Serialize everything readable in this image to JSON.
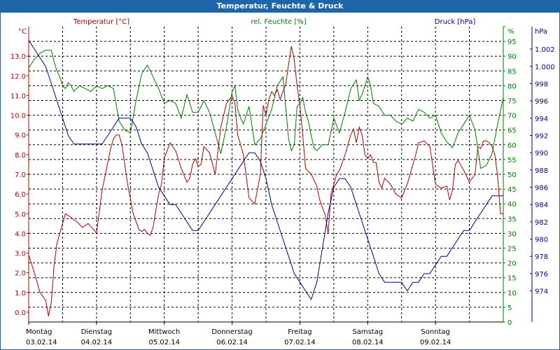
{
  "title": "Temperatur, Feuchte & Druck",
  "chart_data": {
    "type": "line",
    "title": "Temperatur, Feuchte & Druck",
    "colors": {
      "temperature": "#b00000",
      "humidity": "#007a00",
      "pressure": "#00008b",
      "grid": "#000000",
      "title_bg": "#1d64a8"
    },
    "legend": {
      "temperature": "Temperatur [°C]",
      "humidity": "rel. Feuchte [%]",
      "pressure": "Druck [hPa]"
    },
    "axes": {
      "left": {
        "unit": "°C",
        "min": -0.5,
        "max": 14.5,
        "ticks": [
          "0.0",
          "1.0",
          "2.0",
          "3.0",
          "4.0",
          "5.0",
          "6.0",
          "7.0",
          "8.0",
          "9.0",
          "10.0",
          "11.0",
          "12.0",
          "13.0"
        ]
      },
      "humidity": {
        "unit": "%",
        "min": 0,
        "max": 100,
        "ticks": [
          "0",
          "5",
          "10",
          "15",
          "20",
          "25",
          "30",
          "35",
          "40",
          "45",
          "50",
          "55",
          "60",
          "65",
          "70",
          "75",
          "80",
          "85",
          "90",
          "95",
          "100"
        ]
      },
      "right": {
        "unit": "hPa",
        "min": 970.4,
        "max": 1004.6,
        "ticks": [
          "974",
          "976",
          "978",
          "980",
          "982",
          "984",
          "986",
          "988",
          "990",
          "992",
          "994",
          "996",
          "998",
          "1.000",
          "1.002"
        ]
      }
    },
    "x_range_hours": [
      0,
      168
    ],
    "days": [
      {
        "day": "Montag",
        "date": "03.02.14",
        "hour": 0
      },
      {
        "day": "Dienstag",
        "date": "04.02.14",
        "hour": 24
      },
      {
        "day": "Mittwoch",
        "date": "05.02.14",
        "hour": 48
      },
      {
        "day": "Donnerstag",
        "date": "06.02.14",
        "hour": 72
      },
      {
        "day": "Freitag",
        "date": "07.02.14",
        "hour": 96
      },
      {
        "day": "Samstag",
        "date": "08.02.14",
        "hour": 120
      },
      {
        "day": "Sonntag",
        "date": "09.02.14",
        "hour": 144
      }
    ],
    "series": [
      {
        "name": "Temperatur",
        "unit": "°C",
        "axis": "left",
        "x": [
          0,
          2,
          4,
          6,
          7,
          8,
          9,
          10,
          11,
          13,
          15,
          17,
          19,
          21,
          23,
          24,
          26,
          28,
          29,
          30,
          31,
          32,
          33,
          35,
          37,
          39,
          40,
          41,
          42,
          43,
          44,
          46,
          47,
          48,
          50,
          52,
          54,
          56,
          57,
          58,
          59,
          60,
          61,
          62,
          64,
          66,
          68,
          70,
          72,
          73,
          74,
          76,
          78,
          80,
          82,
          83,
          84,
          85,
          86,
          87,
          88,
          89,
          90,
          91,
          92,
          93,
          94,
          95,
          96,
          97,
          98,
          100,
          101,
          102,
          103,
          104,
          105,
          106,
          107,
          108,
          109,
          110,
          111,
          112,
          113,
          114,
          115,
          116,
          117,
          118,
          119,
          120,
          121,
          122,
          123,
          124,
          125,
          126,
          128,
          130,
          132,
          134,
          136,
          137,
          138,
          140,
          142,
          144,
          146,
          148,
          149,
          150,
          151,
          152,
          154,
          156,
          158,
          159,
          160,
          161,
          162,
          163,
          164,
          165,
          166,
          167,
          168
        ],
        "values": [
          2.9,
          2.0,
          1.0,
          0.6,
          -0.2,
          0.5,
          2.4,
          3.5,
          4.0,
          5.0,
          4.8,
          4.6,
          4.3,
          4.5,
          4.2,
          4.0,
          6.2,
          7.6,
          8.3,
          8.8,
          9.0,
          9.0,
          8.5,
          6.5,
          5.0,
          4.2,
          4.1,
          4.2,
          4.0,
          3.9,
          4.3,
          6.0,
          6.5,
          7.8,
          8.6,
          8.2,
          7.3,
          6.6,
          6.8,
          7.5,
          7.8,
          7.4,
          7.5,
          8.4,
          8.1,
          7.0,
          9.4,
          10.6,
          11.0,
          10.6,
          9.0,
          8.0,
          5.8,
          5.5,
          7.0,
          10.5,
          10.0,
          10.8,
          11.2,
          11.0,
          11.3,
          10.8,
          11.2,
          11.6,
          12.6,
          13.5,
          12.8,
          11.5,
          10.5,
          9.0,
          7.3,
          7.0,
          6.7,
          6.4,
          5.7,
          5.3,
          4.9,
          4.0,
          6.0,
          6.5,
          7.0,
          7.2,
          7.6,
          8.0,
          8.5,
          9.0,
          9.3,
          8.6,
          9.4,
          9.0,
          8.0,
          7.8,
          8.0,
          7.6,
          7.6,
          6.6,
          6.3,
          6.8,
          6.5,
          6.0,
          5.8,
          6.5,
          7.5,
          8.0,
          8.6,
          8.7,
          8.4,
          6.5,
          6.3,
          6.4,
          5.7,
          6.2,
          7.5,
          7.7,
          7.2,
          6.6,
          7.0,
          8.4,
          8.3,
          8.7,
          8.7,
          8.6,
          8.4,
          8.0,
          6.9,
          5.0,
          5.0
        ]
      },
      {
        "name": "rel. Feuchte",
        "unit": "%",
        "axis": "humidity",
        "x": [
          0,
          2,
          4,
          6,
          8,
          9,
          10,
          11,
          12,
          13,
          14,
          15,
          16,
          17,
          18,
          20,
          22,
          24,
          26,
          28,
          30,
          32,
          34,
          36,
          38,
          40,
          42,
          44,
          46,
          48,
          50,
          52,
          54,
          56,
          58,
          60,
          62,
          64,
          66,
          68,
          70,
          72,
          73,
          74,
          75,
          76,
          78,
          80,
          82,
          84,
          86,
          88,
          90,
          92,
          93,
          94,
          95,
          96,
          97,
          98,
          99,
          100,
          101,
          102,
          104,
          106,
          108,
          110,
          112,
          114,
          116,
          117,
          118,
          119,
          120,
          121,
          122,
          124,
          126,
          128,
          130,
          132,
          134,
          136,
          138,
          140,
          142,
          144,
          146,
          148,
          150,
          152,
          154,
          156,
          158,
          160,
          162,
          164,
          166,
          168
        ],
        "values": [
          86,
          89,
          91,
          92,
          92,
          88,
          85,
          83,
          80,
          79,
          81,
          80,
          78,
          79,
          80,
          79,
          78,
          80,
          79,
          80,
          79,
          68,
          65,
          64,
          75,
          84,
          87,
          83,
          79,
          74,
          75,
          74,
          69,
          77,
          71,
          71,
          75,
          71,
          64,
          57,
          66,
          78,
          80,
          72,
          69,
          67,
          73,
          60,
          62,
          67,
          72,
          80,
          83,
          62,
          58,
          60,
          73,
          74,
          76,
          71,
          68,
          63,
          59,
          58,
          60,
          60,
          69,
          64,
          71,
          79,
          82,
          75,
          77,
          80,
          83,
          80,
          74,
          73,
          70,
          70,
          68,
          67,
          69,
          68,
          72,
          71,
          69,
          70,
          64,
          61,
          59,
          64,
          67,
          70,
          65,
          52,
          53,
          57,
          67,
          76
        ]
      },
      {
        "name": "Druck",
        "unit": "hPa",
        "axis": "right",
        "x": [
          0,
          2,
          4,
          6,
          8,
          10,
          12,
          14,
          16,
          18,
          20,
          22,
          24,
          26,
          28,
          30,
          32,
          34,
          36,
          38,
          40,
          42,
          44,
          46,
          48,
          50,
          52,
          54,
          56,
          58,
          60,
          62,
          64,
          66,
          68,
          70,
          72,
          74,
          76,
          78,
          80,
          82,
          84,
          86,
          88,
          90,
          92,
          94,
          96,
          98,
          100,
          102,
          104,
          106,
          108,
          110,
          112,
          114,
          116,
          118,
          120,
          122,
          124,
          126,
          128,
          130,
          132,
          134,
          136,
          138,
          140,
          142,
          144,
          146,
          148,
          150,
          152,
          154,
          156,
          158,
          160,
          162,
          164,
          166,
          168
        ],
        "values": [
          1003,
          1002,
          1001,
          1000,
          998,
          996,
          994,
          992,
          991,
          991,
          991,
          991,
          991,
          991,
          992,
          993,
          994,
          994,
          994,
          993,
          991,
          990,
          988,
          986,
          985,
          984,
          984,
          983,
          982,
          981,
          981,
          982,
          983,
          984,
          985,
          986,
          987,
          988,
          989,
          990,
          990,
          989,
          987,
          984,
          982,
          980,
          978,
          976,
          975,
          974,
          973,
          975,
          979,
          983,
          986,
          987,
          987,
          986,
          984,
          982,
          980,
          978,
          976,
          975,
          975,
          975,
          975,
          974,
          975,
          975,
          976,
          976,
          977,
          978,
          978,
          979,
          980,
          981,
          981,
          982,
          983,
          984,
          985,
          985,
          985
        ]
      }
    ]
  }
}
